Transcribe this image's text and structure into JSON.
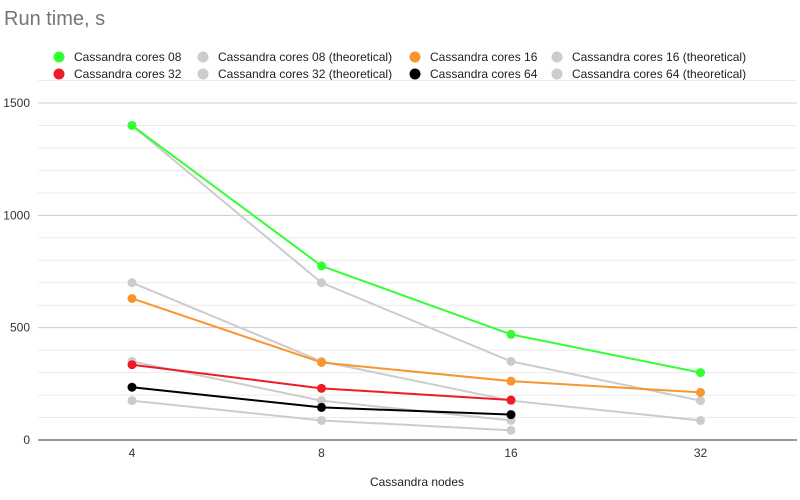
{
  "chart_data": {
    "type": "line",
    "title": "Run time, s",
    "xlabel": "Cassandra nodes",
    "ylabel": "",
    "x": [
      4,
      8,
      16,
      32
    ],
    "x_tick_labels": [
      "4",
      "8",
      "16",
      "32"
    ],
    "ylim": [
      0,
      1600
    ],
    "y_ticks": [
      0,
      500,
      1000,
      1500
    ],
    "grid": true,
    "legend_position": "top",
    "series": [
      {
        "name": "Cassandra cores 08",
        "color": "#33ff33",
        "values": [
          1400,
          775,
          470,
          300
        ]
      },
      {
        "name": "Cassandra cores 08 (theoretical)",
        "color": "#cccccc",
        "values": [
          1400,
          700,
          350,
          175
        ]
      },
      {
        "name": "Cassandra cores 16",
        "color": "#f7962f",
        "values": [
          630,
          345,
          262,
          212
        ]
      },
      {
        "name": "Cassandra cores 16 (theoretical)",
        "color": "#cccccc",
        "values": [
          700,
          350,
          175,
          87
        ]
      },
      {
        "name": "Cassandra cores 32",
        "color": "#ee1c25",
        "values": [
          335,
          230,
          178,
          null
        ]
      },
      {
        "name": "Cassandra cores 32 (theoretical)",
        "color": "#cccccc",
        "values": [
          350,
          175,
          87,
          null
        ]
      },
      {
        "name": "Cassandra cores 64",
        "color": "#000000",
        "values": [
          235,
          145,
          113,
          null
        ]
      },
      {
        "name": "Cassandra cores 64 (theoretical)",
        "color": "#cccccc",
        "values": [
          175,
          87,
          43,
          null
        ]
      }
    ]
  }
}
